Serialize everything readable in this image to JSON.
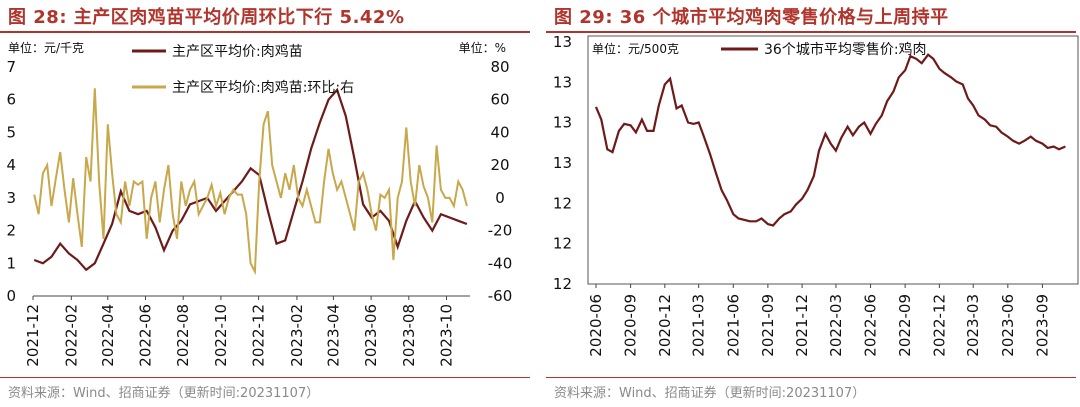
{
  "left": {
    "title": "图 28:  主产区肉鸡苗平均价周环比下行 5.42%",
    "source": "资料来源：Wind、招商证券（更新时间:20231107）",
    "colors": {
      "primary": "#6e1a1a",
      "secondary": "#c8a84b",
      "title": "#b0342c"
    },
    "chart_data": {
      "type": "line",
      "title": "",
      "left_unit": "单位：元/千克",
      "right_unit": "单位：%",
      "ylim_left": [
        0,
        7
      ],
      "ylim_right": [
        -60,
        80
      ],
      "y_ticks_left": [
        "0",
        "1",
        "2",
        "3",
        "4",
        "5",
        "6",
        "7"
      ],
      "y_ticks_right": [
        "-60",
        "-40",
        "-20",
        "0",
        "20",
        "40",
        "60",
        "80"
      ],
      "x_ticks": [
        "2021-12",
        "2022-02",
        "2022-04",
        "2022-06",
        "2022-08",
        "2022-10",
        "2022-12",
        "2023-02",
        "2023-04",
        "2023-06",
        "2023-08",
        "2023-10"
      ],
      "legend_position": "top",
      "series": [
        {
          "name": "主产区平均价:肉鸡苗",
          "axis": "left",
          "x": [
            "2021-12-03",
            "2021-12-17",
            "2021-12-31",
            "2022-01-14",
            "2022-01-28",
            "2022-02-11",
            "2022-02-25",
            "2022-03-11",
            "2022-03-25",
            "2022-04-08",
            "2022-04-22",
            "2022-05-06",
            "2022-05-20",
            "2022-06-03",
            "2022-06-17",
            "2022-07-01",
            "2022-07-15",
            "2022-07-29",
            "2022-08-12",
            "2022-08-26",
            "2022-09-09",
            "2022-09-23",
            "2022-10-07",
            "2022-10-21",
            "2022-11-04",
            "2022-11-18",
            "2022-12-02",
            "2022-12-16",
            "2022-12-30",
            "2023-01-13",
            "2023-01-27",
            "2023-02-10",
            "2023-02-24",
            "2023-03-10",
            "2023-03-24",
            "2023-04-07",
            "2023-04-21",
            "2023-05-05",
            "2023-05-19",
            "2023-06-02",
            "2023-06-16",
            "2023-06-30",
            "2023-07-14",
            "2023-07-28",
            "2023-08-11",
            "2023-08-25",
            "2023-09-08",
            "2023-09-22",
            "2023-10-06",
            "2023-10-20",
            "2023-11-03"
          ],
          "values": [
            1.1,
            1.0,
            1.2,
            1.6,
            1.3,
            1.1,
            0.8,
            1.0,
            1.6,
            2.2,
            3.2,
            2.6,
            2.5,
            2.6,
            2.1,
            1.4,
            2.0,
            2.3,
            2.8,
            2.9,
            3.0,
            2.6,
            2.9,
            3.2,
            3.5,
            3.9,
            3.7,
            2.6,
            1.6,
            1.7,
            2.6,
            3.5,
            4.5,
            5.3,
            6.0,
            6.3,
            5.5,
            4.2,
            2.8,
            2.4,
            2.6,
            2.3,
            1.5,
            2.3,
            2.9,
            2.4,
            2.0,
            2.5,
            2.4,
            2.3,
            2.2
          ]
        },
        {
          "name": "主产区平均价:肉鸡苗:环比:右",
          "axis": "right",
          "x": [
            "2021-12-03",
            "2021-12-10",
            "2021-12-17",
            "2021-12-24",
            "2021-12-31",
            "2022-01-07",
            "2022-01-14",
            "2022-01-21",
            "2022-01-28",
            "2022-02-04",
            "2022-02-11",
            "2022-02-18",
            "2022-02-25",
            "2022-03-04",
            "2022-03-11",
            "2022-03-18",
            "2022-03-25",
            "2022-04-01",
            "2022-04-08",
            "2022-04-15",
            "2022-04-22",
            "2022-04-29",
            "2022-05-06",
            "2022-05-13",
            "2022-05-20",
            "2022-05-27",
            "2022-06-03",
            "2022-06-10",
            "2022-06-17",
            "2022-06-24",
            "2022-07-01",
            "2022-07-08",
            "2022-07-15",
            "2022-07-22",
            "2022-07-29",
            "2022-08-05",
            "2022-08-12",
            "2022-08-19",
            "2022-08-26",
            "2022-09-02",
            "2022-09-09",
            "2022-09-16",
            "2022-09-23",
            "2022-09-30",
            "2022-10-07",
            "2022-10-14",
            "2022-10-21",
            "2022-10-28",
            "2022-11-04",
            "2022-11-11",
            "2022-11-18",
            "2022-11-25",
            "2022-12-02",
            "2022-12-09",
            "2022-12-16",
            "2022-12-23",
            "2022-12-30",
            "2023-01-06",
            "2023-01-13",
            "2023-01-20",
            "2023-01-27",
            "2023-02-03",
            "2023-02-10",
            "2023-02-17",
            "2023-02-24",
            "2023-03-03",
            "2023-03-10",
            "2023-03-17",
            "2023-03-24",
            "2023-03-31",
            "2023-04-07",
            "2023-04-14",
            "2023-04-21",
            "2023-04-28",
            "2023-05-05",
            "2023-05-12",
            "2023-05-19",
            "2023-05-26",
            "2023-06-02",
            "2023-06-09",
            "2023-06-16",
            "2023-06-23",
            "2023-06-30",
            "2023-07-07",
            "2023-07-14",
            "2023-07-21",
            "2023-07-28",
            "2023-08-04",
            "2023-08-11",
            "2023-08-18",
            "2023-08-25",
            "2023-09-01",
            "2023-09-08",
            "2023-09-15",
            "2023-09-22",
            "2023-09-29",
            "2023-10-06",
            "2023-10-13",
            "2023-10-20",
            "2023-10-27",
            "2023-11-03"
          ],
          "values": [
            2,
            -10,
            15,
            20,
            -5,
            12,
            28,
            5,
            -15,
            12,
            -10,
            -30,
            25,
            10,
            67,
            10,
            -25,
            45,
            15,
            -10,
            -15,
            10,
            -5,
            10,
            8,
            10,
            -25,
            0,
            10,
            -15,
            5,
            20,
            -10,
            -25,
            10,
            -5,
            5,
            10,
            -10,
            -5,
            0,
            8,
            -5,
            3,
            -10,
            0,
            5,
            2,
            2,
            -10,
            -40,
            -45,
            10,
            45,
            53,
            20,
            10,
            0,
            15,
            5,
            20,
            0,
            -5,
            5,
            -5,
            -15,
            -15,
            10,
            30,
            15,
            5,
            10,
            0,
            -10,
            -20,
            10,
            15,
            5,
            -10,
            -20,
            2,
            0,
            5,
            -38,
            0,
            10,
            43,
            10,
            -5,
            20,
            7,
            0,
            -15,
            32,
            5,
            0,
            0,
            -5,
            10,
            5,
            -5
          ]
        }
      ]
    }
  },
  "right": {
    "title": "图 29:  36 个城市平均鸡肉零售价格与上周持平",
    "source": "资料来源：Wind、招商证券（更新时间:20231107）",
    "colors": {
      "primary": "#6e1a1a",
      "title": "#b0342c"
    },
    "chart_data": {
      "type": "line",
      "title": "",
      "unit": "单位：元/500克",
      "ylim": [
        11.8,
        13.5
      ],
      "y_ticks": [
        "12",
        "12",
        "12",
        "13",
        "13",
        "13",
        "13"
      ],
      "x_ticks": [
        "2020-06",
        "2020-09",
        "2020-12",
        "2021-03",
        "2021-06",
        "2021-09",
        "2021-12",
        "2022-03",
        "2022-06",
        "2022-09",
        "2022-12",
        "2023-03",
        "2023-06",
        "2023-09"
      ],
      "legend_position": "top",
      "series": [
        {
          "name": "36个城市平均零售价:鸡肉",
          "axis": "left",
          "x": [
            "2020-06-01",
            "2020-06-15",
            "2020-07-01",
            "2020-07-15",
            "2020-08-01",
            "2020-08-15",
            "2020-09-01",
            "2020-09-15",
            "2020-10-01",
            "2020-10-15",
            "2020-11-01",
            "2020-11-15",
            "2020-12-01",
            "2020-12-15",
            "2021-01-01",
            "2021-01-15",
            "2021-02-01",
            "2021-02-15",
            "2021-03-01",
            "2021-03-15",
            "2021-04-01",
            "2021-04-15",
            "2021-05-01",
            "2021-05-15",
            "2021-06-01",
            "2021-06-15",
            "2021-07-01",
            "2021-07-15",
            "2021-08-01",
            "2021-08-15",
            "2021-09-01",
            "2021-09-15",
            "2021-10-01",
            "2021-10-15",
            "2021-11-01",
            "2021-11-15",
            "2021-12-01",
            "2021-12-15",
            "2022-01-01",
            "2022-01-15",
            "2022-02-01",
            "2022-02-15",
            "2022-03-01",
            "2022-03-15",
            "2022-04-01",
            "2022-04-15",
            "2022-05-01",
            "2022-05-15",
            "2022-06-01",
            "2022-06-15",
            "2022-07-01",
            "2022-07-15",
            "2022-08-01",
            "2022-08-15",
            "2022-09-01",
            "2022-09-15",
            "2022-10-01",
            "2022-10-15",
            "2022-11-01",
            "2022-11-15",
            "2022-12-01",
            "2022-12-15",
            "2023-01-01",
            "2023-01-15",
            "2023-02-01",
            "2023-02-15",
            "2023-03-01",
            "2023-03-15",
            "2023-04-01",
            "2023-04-15",
            "2023-05-01",
            "2023-05-15",
            "2023-06-01",
            "2023-06-15",
            "2023-07-01",
            "2023-07-15",
            "2023-08-01",
            "2023-08-15",
            "2023-09-01",
            "2023-09-15",
            "2023-10-01",
            "2023-10-15",
            "2023-11-01"
          ],
          "values": [
            13.04,
            12.95,
            12.74,
            12.72,
            12.87,
            12.92,
            12.91,
            12.86,
            12.95,
            12.87,
            12.87,
            13.05,
            13.2,
            13.24,
            13.03,
            13.05,
            12.93,
            12.92,
            12.93,
            12.83,
            12.7,
            12.58,
            12.45,
            12.38,
            12.28,
            12.25,
            12.24,
            12.23,
            12.23,
            12.25,
            12.21,
            12.2,
            12.25,
            12.28,
            12.3,
            12.35,
            12.39,
            12.45,
            12.55,
            12.73,
            12.85,
            12.78,
            12.73,
            12.82,
            12.9,
            12.84,
            12.9,
            12.93,
            12.85,
            12.92,
            12.98,
            13.08,
            13.15,
            13.25,
            13.3,
            13.4,
            13.38,
            13.35,
            13.41,
            13.38,
            13.31,
            13.28,
            13.25,
            13.22,
            13.2,
            13.1,
            13.05,
            12.98,
            12.95,
            12.91,
            12.9,
            12.86,
            12.83,
            12.8,
            12.78,
            12.8,
            12.83,
            12.8,
            12.78,
            12.75,
            12.76,
            12.74,
            12.76
          ]
        }
      ]
    }
  }
}
